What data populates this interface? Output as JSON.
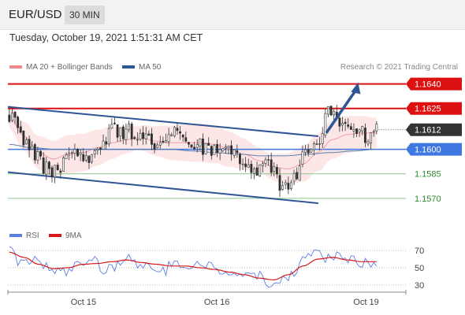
{
  "header": {
    "symbol": "EUR/USD",
    "timeframe": "30 MIN",
    "datetime": "Tuesday, October 19, 2021 1:51:31 AM CET"
  },
  "legend": {
    "ma20_bb": "MA 20 + Bollinger Bands",
    "ma50": "MA 50",
    "credit": "Research © 2021 Trading Central"
  },
  "rsi_legend": {
    "rsi": "RSI",
    "ma9": "9MA"
  },
  "colors": {
    "resistance": "#dd1111",
    "channel": "#2f5597",
    "pivot": "#3f78e0",
    "support": "#8cc98c",
    "support_text": "#2e8b2e",
    "current": "#333333",
    "bull": "#ffffff",
    "bear": "#2e2e2e",
    "ma20": "#f2a0a0",
    "ma50": "#5a7fb0",
    "bb_fill": "#fce2e2",
    "rsi": "#5c7de0",
    "rsi_ma": "#d81818"
  },
  "chart_data": [
    {
      "type": "candlestick",
      "instrument": "EUR/USD",
      "timeframe": "30 MIN",
      "ylim": [
        1.1555,
        1.1648
      ],
      "levels": [
        {
          "label": "1.1640",
          "value": 1.164,
          "kind": "resistance"
        },
        {
          "label": "1.1625",
          "value": 1.1625,
          "kind": "resistance"
        },
        {
          "label": "1.1612",
          "value": 1.1612,
          "kind": "current"
        },
        {
          "label": "1.1600",
          "value": 1.16,
          "kind": "pivot"
        },
        {
          "label": "1.1585",
          "value": 1.1585,
          "kind": "support"
        },
        {
          "label": "1.1570",
          "value": 1.157,
          "kind": "support"
        }
      ],
      "x_labels": [
        "Oct 15",
        "Oct 16",
        "Oct 19"
      ],
      "close_path": [
        1.1622,
        1.1607,
        1.1598,
        1.1589,
        1.1586,
        1.1595,
        1.1596,
        1.1595,
        1.1606,
        1.1612,
        1.1611,
        1.1605,
        1.1604,
        1.1605,
        1.1609,
        1.1606,
        1.1603,
        1.1597,
        1.1602,
        1.16,
        1.1587,
        1.1588,
        1.159,
        1.1577,
        1.1583,
        1.1598,
        1.1605,
        1.1623,
        1.1613,
        1.161,
        1.1609,
        1.1612
      ],
      "ma20_path": [
        1.162,
        1.1608,
        1.1598,
        1.1594,
        1.1597,
        1.1598,
        1.1601,
        1.1604,
        1.1606,
        1.1607,
        1.1605,
        1.1604,
        1.1604,
        1.1604,
        1.1603,
        1.16,
        1.1597,
        1.1593,
        1.1589,
        1.1588,
        1.1591,
        1.1598,
        1.1606,
        1.1609,
        1.161,
        1.161
      ],
      "ma50_path": [
        1.1603,
        1.1601,
        1.16,
        1.16,
        1.16,
        1.16,
        1.16,
        1.16,
        1.1599,
        1.1598,
        1.1597,
        1.1596,
        1.1596,
        1.1597,
        1.1598,
        1.1599,
        1.16
      ],
      "bb_width": 0.0009,
      "channel_upper": [
        [
          0.0,
          1.1626
        ],
        [
          0.78,
          1.1608
        ]
      ],
      "channel_lower": [
        [
          0.0,
          1.1586
        ],
        [
          0.78,
          1.1567
        ]
      ],
      "forecast_arrow": [
        [
          0.8,
          1.161
        ],
        [
          0.88,
          1.164
        ]
      ]
    },
    {
      "type": "line",
      "name": "RSI",
      "ylim": [
        20,
        80
      ],
      "y_ticks": [
        70,
        50,
        30
      ],
      "rsi_path": [
        72,
        55,
        60,
        52,
        45,
        46,
        55,
        60,
        48,
        52,
        66,
        50,
        52,
        45,
        60,
        48,
        55,
        52,
        40,
        45,
        38,
        42,
        32,
        35,
        45,
        62,
        68,
        60,
        66,
        58,
        55,
        57
      ],
      "ma_path": [
        68,
        62,
        54,
        49,
        50,
        54,
        55,
        57,
        59,
        56,
        54,
        52,
        52,
        50,
        48,
        45,
        42,
        38,
        36,
        42,
        52,
        60,
        62,
        59,
        57,
        57
      ]
    }
  ]
}
